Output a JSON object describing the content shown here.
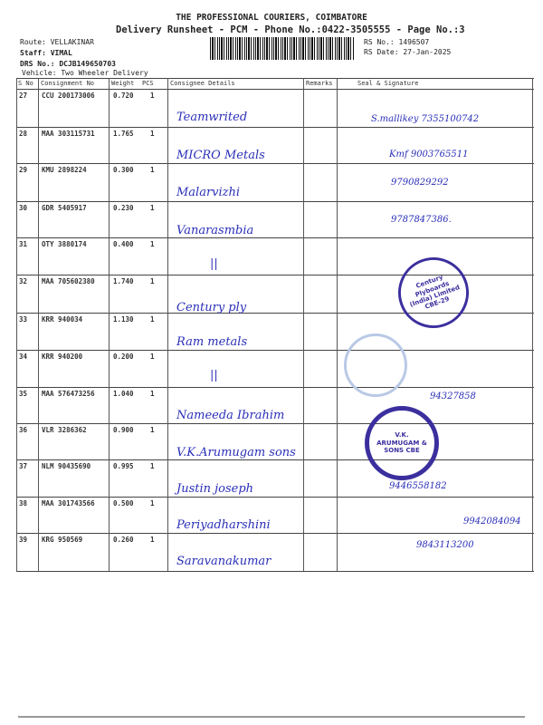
{
  "header": {
    "company": "THE PROFESSIONAL COURIERS, COIMBATORE",
    "subtitle": "Delivery Runsheet - PCM - Phone No.:0422-3505555 - Page No.:3",
    "route": "Route: VELLAKINAR",
    "staff": "Staff: VIMAL",
    "drs_no": "DRS No.: DCJB149650703",
    "vehicle": "Vehicle: Two Wheeler Delivery",
    "rs_no": "RS No.: 1496507",
    "rs_date": "RS Date: 27-Jan-2025"
  },
  "table": {
    "columns": [
      "S No",
      "Consignment No",
      "Weight",
      "PCS",
      "Consignee Details",
      "Remarks",
      "Seal & Signature"
    ],
    "rows": [
      {
        "sno": "27",
        "consignment": "CCU 200173006",
        "weight": "0.720",
        "pcs": "1",
        "consignee": "Teamwrited",
        "signature": "S.mallikey 7355100742"
      },
      {
        "sno": "28",
        "consignment": "MAA 303115731",
        "weight": "1.765",
        "pcs": "1",
        "consignee": "MICRO Metals",
        "signature": "Kmf 9003765511"
      },
      {
        "sno": "29",
        "consignment": "KMU 2898224",
        "weight": "0.300",
        "pcs": "1",
        "consignee": "Malarvizhi",
        "signature": "9790829292"
      },
      {
        "sno": "30",
        "consignment": "GDR 5405917",
        "weight": "0.230",
        "pcs": "1",
        "consignee": "Vanarasmbia",
        "signature": "9787847386."
      },
      {
        "sno": "31",
        "consignment": "OTY 3880174",
        "weight": "0.400",
        "pcs": "1",
        "consignee": "||",
        "signature": ""
      },
      {
        "sno": "32",
        "consignment": "MAA 705602380",
        "weight": "1.740",
        "pcs": "1",
        "consignee": "Century ply",
        "signature": ""
      },
      {
        "sno": "33",
        "consignment": "KRR 940034",
        "weight": "1.130",
        "pcs": "1",
        "consignee": "Ram metals",
        "signature": ""
      },
      {
        "sno": "34",
        "consignment": "KRR 940200",
        "weight": "0.200",
        "pcs": "1",
        "consignee": "||",
        "signature": ""
      },
      {
        "sno": "35",
        "consignment": "MAA 576473256",
        "weight": "1.040",
        "pcs": "1",
        "consignee": "Nameeda Ibrahim",
        "signature": "94327858"
      },
      {
        "sno": "36",
        "consignment": "VLR 3286362",
        "weight": "0.900",
        "pcs": "1",
        "consignee": "V.K.Arumugam sons",
        "signature": ""
      },
      {
        "sno": "37",
        "consignment": "NLM 90435690",
        "weight": "0.995",
        "pcs": "1",
        "consignee": "Justin joseph",
        "signature": "9446558182"
      },
      {
        "sno": "38",
        "consignment": "MAA 301743566",
        "weight": "0.500",
        "pcs": "1",
        "consignee": "Periyadharshini",
        "signature": "9942084094"
      },
      {
        "sno": "39",
        "consignment": "KRG 950569",
        "weight": "0.260",
        "pcs": "1",
        "consignee": "Saravanakumar",
        "signature": "9843113200"
      }
    ]
  },
  "stamps": {
    "century": "Century Plyboards (India) Limited CBE-29",
    "arumugam": "V.K. ARUMUGAM & SONS CBE"
  },
  "colors": {
    "ink": "#2a2fb8",
    "stamp": "#3b2f9e"
  }
}
